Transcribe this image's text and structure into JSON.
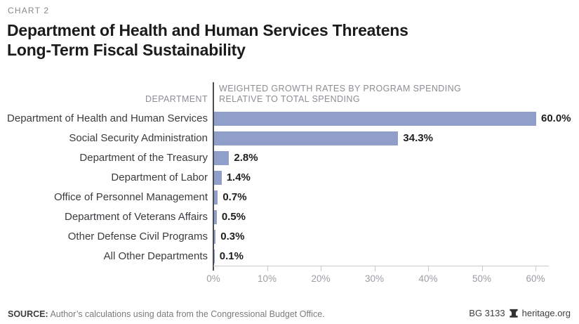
{
  "page": {
    "eyebrow": "CHART 2",
    "title_line1": "Department of Health and Human Services Threatens",
    "title_line2": "Long-Term Fiscal Sustainability"
  },
  "chart_data": {
    "type": "bar",
    "orientation": "horizontal",
    "left_column_header": "DEPARTMENT",
    "plot_header_line1": "WEIGHTED GROWTH RATES BY PROGRAM SPENDING",
    "plot_header_line2": "RELATIVE TO TOTAL SPENDING",
    "categories": [
      "Department of Health and Human Services",
      "Social Security Administration",
      "Department of the Treasury",
      "Department of Labor",
      "Office of Personnel Management",
      "Department of Veterans Affairs",
      "Other Defense Civil Programs",
      "All Other Departments"
    ],
    "values": [
      60.0,
      34.3,
      2.8,
      1.4,
      0.7,
      0.5,
      0.3,
      0.1
    ],
    "value_labels": [
      "60.0%",
      "34.3%",
      "2.8%",
      "1.4%",
      "0.7%",
      "0.5%",
      "0.3%",
      "0.1%"
    ],
    "x_tick_values": [
      0,
      10,
      20,
      30,
      40,
      50,
      60
    ],
    "x_tick_labels": [
      "0%",
      "10%",
      "20%",
      "30%",
      "40%",
      "50%",
      "60%"
    ],
    "xlim": [
      0,
      60
    ],
    "grid": false,
    "legend": "none",
    "bar_color": "#8f9fc9"
  },
  "footer": {
    "source_label": "SOURCE:",
    "source_text": " Author’s calculations using data from the Congressional Budget Office.",
    "report_id": "BG 3133",
    "brand": "heritage.org",
    "brand_icon": "liberty-bell-icon"
  },
  "colors": {
    "bar": "#8f9fc9",
    "title": "#1b1b1b",
    "eyebrow_gray": "#85888b",
    "header_gray": "#8b8e92",
    "label_dark": "#3a3c3f",
    "value_black": "#1e1e1e",
    "tick_gray": "#9b9ea2",
    "axis_dark": "#4b4d4f",
    "axis_light": "#c9cacb",
    "background": "#ffffff"
  }
}
